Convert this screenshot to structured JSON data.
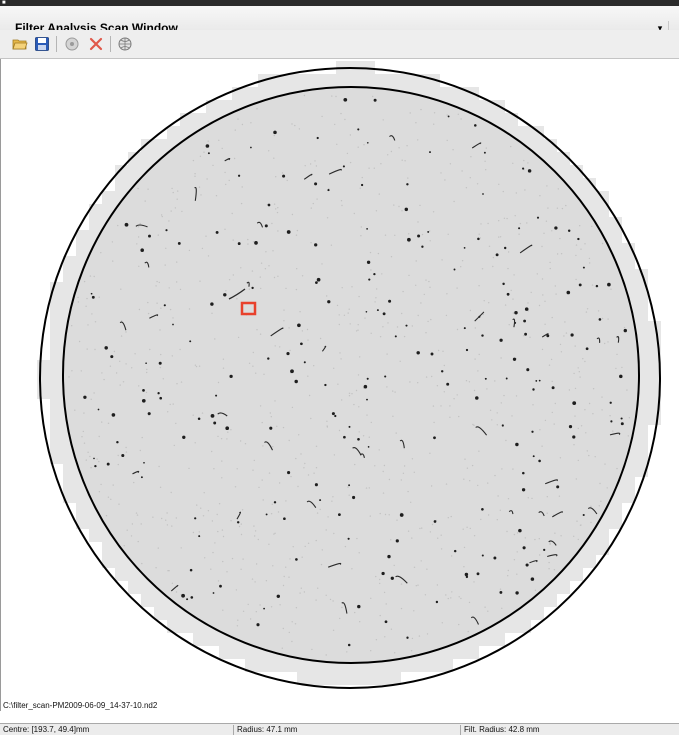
{
  "window": {
    "title": "Filter Analysis Scan Window",
    "dropdown_glyph": "▾"
  },
  "toolbar": {
    "buttons": [
      {
        "name": "open-folder-icon",
        "color": "#e6b84a"
      },
      {
        "name": "save-disk-icon",
        "color": "#2a5bb8"
      },
      {
        "name": "scan-disc-icon",
        "color": "#9a9a9a"
      },
      {
        "name": "delete-x-icon",
        "color": "#e0584a"
      },
      {
        "name": "globe-filter-icon",
        "color": "#7a7a7a"
      }
    ]
  },
  "scan": {
    "file_path": "C:\\filter_scan-PM2009-06-09_14-37-10.nd2",
    "outer_circle_color": "#000000",
    "filter_circle_color": "#000000",
    "filter_fill": "#dcdcdc",
    "border_tile_fill": "#e6e6e6",
    "selection_color": "#e8412c"
  },
  "status": {
    "centre": "Centre: [193.7, 49.4]mm",
    "radius": "Radius: 47.1 mm",
    "filt_radius": "Filt. Radius: 42.8 mm"
  }
}
